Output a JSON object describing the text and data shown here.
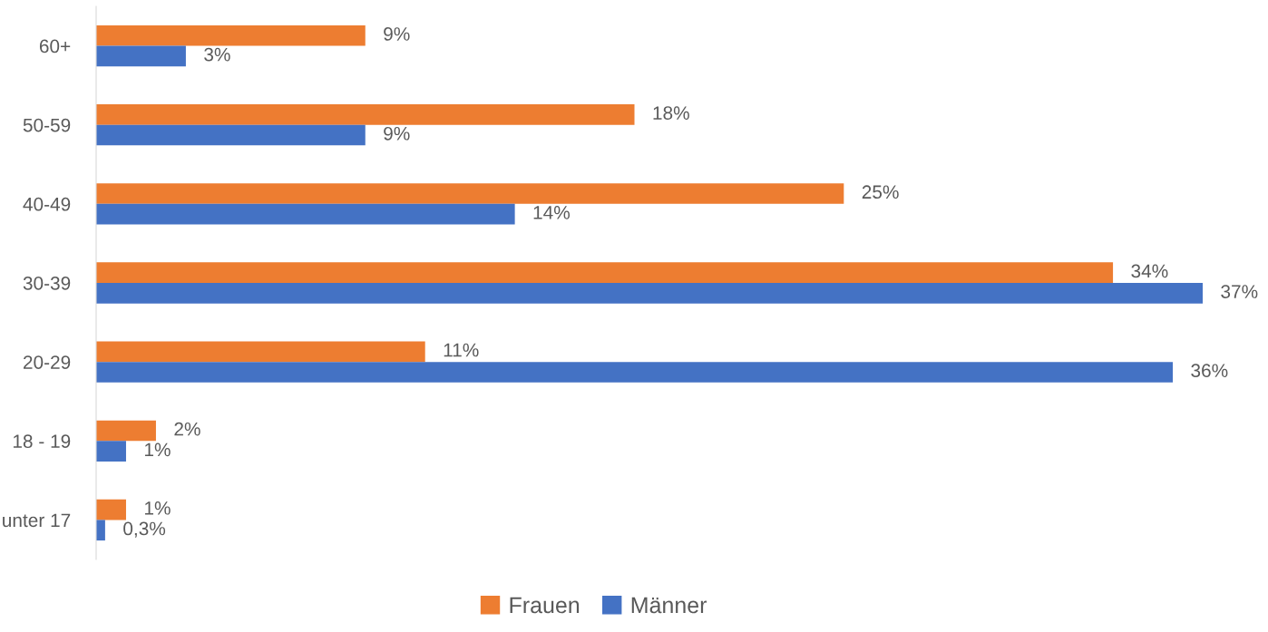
{
  "chart_data": {
    "type": "bar",
    "orientation": "horizontal",
    "categories": [
      "60+",
      "50-59",
      "40-49",
      "30-39",
      "20-29",
      "18 - 19",
      "unter 17"
    ],
    "series": [
      {
        "name": "Frauen",
        "color": "#ed7d31",
        "values": [
          9,
          18,
          25,
          34,
          11,
          2,
          1
        ],
        "value_labels": [
          "9%",
          "18%",
          "25%",
          "34%",
          "11%",
          "2%",
          "1%"
        ]
      },
      {
        "name": "Männer",
        "color": "#4472c4",
        "values": [
          3,
          9,
          14,
          37,
          36,
          1,
          0.3
        ],
        "value_labels": [
          "3%",
          "9%",
          "14%",
          "37%",
          "36%",
          "1%",
          "0,3%"
        ]
      }
    ],
    "tick_labels": "y",
    "grid": false,
    "legend": "bottom"
  }
}
